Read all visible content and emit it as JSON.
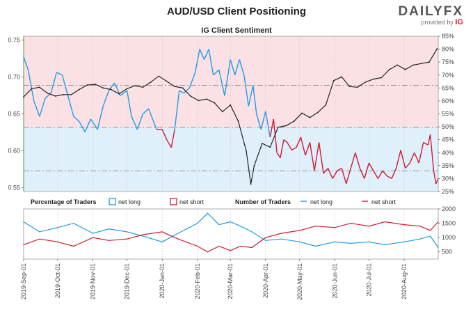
{
  "header": {
    "title": "AUD/USD Client Positioning",
    "subtitle": "IG Client Sentiment",
    "brand_main": "DAILYFX",
    "brand_sub": "provided by",
    "brand_ig": "IG"
  },
  "colors": {
    "net_long": "#1e9be9",
    "net_short": "#d3192f",
    "price": "#222222",
    "long_fill": "#dff0fb",
    "short_fill": "#fbe1e3"
  },
  "chart_data": [
    {
      "type": "line",
      "name": "price-and-sentiment",
      "title": "IG Client Sentiment",
      "ylim_left": [
        0.545,
        0.755
      ],
      "ylim_right": [
        25,
        85
      ],
      "left_ticks": [
        "0.75",
        "0.70",
        "0.65",
        "0.60",
        "0.55"
      ],
      "left_tick_values": [
        0.75,
        0.7,
        0.65,
        0.6,
        0.55
      ],
      "right_ticks": [
        "85%",
        "80%",
        "75%",
        "70%",
        "65%",
        "60%",
        "55%",
        "50%",
        "45%",
        "40%",
        "35%",
        "30%",
        "25%"
      ],
      "right_tick_values": [
        85,
        80,
        75,
        70,
        65,
        60,
        55,
        50,
        45,
        40,
        35,
        30,
        25
      ],
      "reference_lines": [
        {
          "axis": "left",
          "value": 0.6315
        },
        {
          "axis": "right",
          "value": 66
        },
        {
          "axis": "right",
          "value": 33
        }
      ],
      "price_series": {
        "name": "AUD/USD",
        "points": [
          [
            "2019-09-01",
            0.673
          ],
          [
            "2019-09-08",
            0.684
          ],
          [
            "2019-09-15",
            0.686
          ],
          [
            "2019-09-22",
            0.678
          ],
          [
            "2019-09-29",
            0.674
          ],
          [
            "2019-10-06",
            0.676
          ],
          [
            "2019-10-13",
            0.676
          ],
          [
            "2019-10-20",
            0.683
          ],
          [
            "2019-10-27",
            0.689
          ],
          [
            "2019-11-03",
            0.69
          ],
          [
            "2019-11-10",
            0.685
          ],
          [
            "2019-11-17",
            0.683
          ],
          [
            "2019-11-24",
            0.677
          ],
          [
            "2019-12-01",
            0.684
          ],
          [
            "2019-12-08",
            0.688
          ],
          [
            "2019-12-15",
            0.686
          ],
          [
            "2019-12-22",
            0.693
          ],
          [
            "2019-12-29",
            0.701
          ],
          [
            "2020-01-05",
            0.694
          ],
          [
            "2020-01-12",
            0.687
          ],
          [
            "2020-01-19",
            0.685
          ],
          [
            "2020-01-26",
            0.674
          ],
          [
            "2020-02-02",
            0.668
          ],
          [
            "2020-02-09",
            0.67
          ],
          [
            "2020-02-16",
            0.665
          ],
          [
            "2020-02-23",
            0.653
          ],
          [
            "2020-03-01",
            0.662
          ],
          [
            "2020-03-08",
            0.64
          ],
          [
            "2020-03-15",
            0.6
          ],
          [
            "2020-03-19",
            0.555
          ],
          [
            "2020-03-22",
            0.58
          ],
          [
            "2020-03-29",
            0.61
          ],
          [
            "2020-04-05",
            0.605
          ],
          [
            "2020-04-12",
            0.632
          ],
          [
            "2020-04-19",
            0.634
          ],
          [
            "2020-04-26",
            0.64
          ],
          [
            "2020-05-03",
            0.651
          ],
          [
            "2020-05-10",
            0.645
          ],
          [
            "2020-05-17",
            0.652
          ],
          [
            "2020-05-24",
            0.662
          ],
          [
            "2020-05-31",
            0.695
          ],
          [
            "2020-06-07",
            0.7
          ],
          [
            "2020-06-14",
            0.687
          ],
          [
            "2020-06-21",
            0.686
          ],
          [
            "2020-06-28",
            0.693
          ],
          [
            "2020-07-05",
            0.697
          ],
          [
            "2020-07-12",
            0.699
          ],
          [
            "2020-07-19",
            0.71
          ],
          [
            "2020-07-26",
            0.716
          ],
          [
            "2020-08-02",
            0.71
          ],
          [
            "2020-08-09",
            0.716
          ],
          [
            "2020-08-16",
            0.718
          ],
          [
            "2020-08-23",
            0.72
          ],
          [
            "2020-08-30",
            0.738
          ]
        ]
      },
      "sentiment_series": {
        "name": "% net long",
        "points": [
          [
            "2019-09-01",
            77
          ],
          [
            "2019-09-05",
            72
          ],
          [
            "2019-09-10",
            60
          ],
          [
            "2019-09-15",
            54
          ],
          [
            "2019-09-20",
            61
          ],
          [
            "2019-09-25",
            63
          ],
          [
            "2019-09-30",
            71
          ],
          [
            "2019-10-05",
            70
          ],
          [
            "2019-10-10",
            62
          ],
          [
            "2019-10-15",
            54
          ],
          [
            "2019-10-20",
            52
          ],
          [
            "2019-10-25",
            48
          ],
          [
            "2019-10-30",
            53
          ],
          [
            "2019-11-05",
            49
          ],
          [
            "2019-11-10",
            58
          ],
          [
            "2019-11-15",
            64
          ],
          [
            "2019-11-20",
            67
          ],
          [
            "2019-11-25",
            62
          ],
          [
            "2019-12-01",
            64
          ],
          [
            "2019-12-05",
            54
          ],
          [
            "2019-12-10",
            49
          ],
          [
            "2019-12-15",
            55
          ],
          [
            "2019-12-20",
            57
          ],
          [
            "2019-12-27",
            49
          ],
          [
            "2020-01-01",
            49
          ],
          [
            "2020-01-05",
            45
          ],
          [
            "2020-01-09",
            42
          ],
          [
            "2020-01-12",
            49
          ],
          [
            "2020-01-16",
            64
          ],
          [
            "2020-01-20",
            63
          ],
          [
            "2020-01-25",
            65
          ],
          [
            "2020-01-30",
            71
          ],
          [
            "2020-02-03",
            80
          ],
          [
            "2020-02-07",
            76
          ],
          [
            "2020-02-11",
            80
          ],
          [
            "2020-02-15",
            70
          ],
          [
            "2020-02-20",
            72
          ],
          [
            "2020-02-25",
            62
          ],
          [
            "2020-03-01",
            76
          ],
          [
            "2020-03-05",
            70
          ],
          [
            "2020-03-09",
            76
          ],
          [
            "2020-03-13",
            70
          ],
          [
            "2020-03-17",
            58
          ],
          [
            "2020-03-21",
            66
          ],
          [
            "2020-03-24",
            55
          ],
          [
            "2020-03-28",
            49
          ],
          [
            "2020-04-01",
            56
          ],
          [
            "2020-04-05",
            46
          ],
          [
            "2020-04-08",
            53
          ],
          [
            "2020-04-11",
            40
          ],
          [
            "2020-04-14",
            38
          ],
          [
            "2020-04-17",
            45
          ],
          [
            "2020-04-20",
            44
          ],
          [
            "2020-04-24",
            41
          ],
          [
            "2020-04-28",
            42
          ],
          [
            "2020-05-02",
            46
          ],
          [
            "2020-05-06",
            39
          ],
          [
            "2020-05-10",
            44
          ],
          [
            "2020-05-14",
            33
          ],
          [
            "2020-05-18",
            44
          ],
          [
            "2020-05-22",
            32
          ],
          [
            "2020-05-26",
            34
          ],
          [
            "2020-05-30",
            30
          ],
          [
            "2020-06-03",
            33
          ],
          [
            "2020-06-07",
            34
          ],
          [
            "2020-06-11",
            28
          ],
          [
            "2020-06-15",
            34
          ],
          [
            "2020-06-19",
            40
          ],
          [
            "2020-06-23",
            34
          ],
          [
            "2020-06-27",
            30
          ],
          [
            "2020-07-01",
            36
          ],
          [
            "2020-07-05",
            33
          ],
          [
            "2020-07-09",
            30
          ],
          [
            "2020-07-13",
            33
          ],
          [
            "2020-07-17",
            31
          ],
          [
            "2020-07-21",
            30
          ],
          [
            "2020-07-25",
            34
          ],
          [
            "2020-07-29",
            41
          ],
          [
            "2020-08-02",
            34
          ],
          [
            "2020-08-06",
            36
          ],
          [
            "2020-08-10",
            40
          ],
          [
            "2020-08-14",
            36
          ],
          [
            "2020-08-18",
            44
          ],
          [
            "2020-08-22",
            43
          ],
          [
            "2020-08-24",
            47
          ],
          [
            "2020-08-27",
            33
          ],
          [
            "2020-08-29",
            28
          ],
          [
            "2020-08-31",
            30
          ]
        ]
      }
    },
    {
      "type": "line",
      "name": "number-of-traders",
      "ylim": [
        250,
        2000
      ],
      "right_ticks": [
        "2000",
        "1500",
        "1000",
        "500"
      ],
      "right_tick_values": [
        2000,
        1500,
        1000,
        500
      ],
      "x_ticks": [
        "2019-Sep-01",
        "2019-Oct-01",
        "2019-Nov-01",
        "2019-Dec-01",
        "2020-Jan-01",
        "2020-Feb-01",
        "2020-Mar-01",
        "2020-Apr-01",
        "2020-May-01",
        "2020-Jun-01",
        "2020-Jul-01",
        "2020-Aug-01"
      ],
      "x_tick_dates": [
        "2019-09-01",
        "2019-10-01",
        "2019-11-01",
        "2019-12-01",
        "2020-01-01",
        "2020-02-01",
        "2020-03-01",
        "2020-04-01",
        "2020-05-01",
        "2020-06-01",
        "2020-07-01",
        "2020-08-01"
      ],
      "legend_percentage_title": "Percentage of Traders",
      "legend_number_title": "Number of Traders",
      "legend_net_long": "net long",
      "legend_net_short": "net short",
      "series": [
        {
          "name": "net long",
          "points": [
            [
              "2019-09-01",
              1550
            ],
            [
              "2019-09-15",
              1200
            ],
            [
              "2019-10-01",
              1350
            ],
            [
              "2019-10-15",
              1500
            ],
            [
              "2019-11-01",
              1150
            ],
            [
              "2019-11-15",
              1300
            ],
            [
              "2019-12-01",
              1200
            ],
            [
              "2019-12-15",
              1050
            ],
            [
              "2020-01-01",
              850
            ],
            [
              "2020-01-15",
              1150
            ],
            [
              "2020-02-01",
              1500
            ],
            [
              "2020-02-10",
              1850
            ],
            [
              "2020-02-20",
              1450
            ],
            [
              "2020-03-01",
              1550
            ],
            [
              "2020-03-10",
              1400
            ],
            [
              "2020-03-20",
              1200
            ],
            [
              "2020-04-01",
              900
            ],
            [
              "2020-04-15",
              950
            ],
            [
              "2020-05-01",
              850
            ],
            [
              "2020-05-15",
              700
            ],
            [
              "2020-06-01",
              850
            ],
            [
              "2020-06-15",
              800
            ],
            [
              "2020-07-01",
              850
            ],
            [
              "2020-07-15",
              750
            ],
            [
              "2020-08-01",
              850
            ],
            [
              "2020-08-15",
              950
            ],
            [
              "2020-08-24",
              1050
            ],
            [
              "2020-08-31",
              650
            ]
          ]
        },
        {
          "name": "net short",
          "points": [
            [
              "2019-09-01",
              750
            ],
            [
              "2019-09-15",
              950
            ],
            [
              "2019-10-01",
              850
            ],
            [
              "2019-10-15",
              700
            ],
            [
              "2019-11-01",
              1000
            ],
            [
              "2019-11-15",
              900
            ],
            [
              "2019-12-01",
              950
            ],
            [
              "2019-12-15",
              1100
            ],
            [
              "2020-01-01",
              1200
            ],
            [
              "2020-01-15",
              950
            ],
            [
              "2020-02-01",
              700
            ],
            [
              "2020-02-10",
              500
            ],
            [
              "2020-02-20",
              700
            ],
            [
              "2020-03-01",
              550
            ],
            [
              "2020-03-10",
              700
            ],
            [
              "2020-03-20",
              650
            ],
            [
              "2020-04-01",
              1000
            ],
            [
              "2020-04-15",
              1150
            ],
            [
              "2020-05-01",
              1250
            ],
            [
              "2020-05-15",
              1400
            ],
            [
              "2020-06-01",
              1350
            ],
            [
              "2020-06-15",
              1500
            ],
            [
              "2020-07-01",
              1400
            ],
            [
              "2020-07-15",
              1550
            ],
            [
              "2020-08-01",
              1450
            ],
            [
              "2020-08-15",
              1400
            ],
            [
              "2020-08-24",
              1250
            ],
            [
              "2020-08-31",
              1550
            ]
          ]
        }
      ]
    }
  ]
}
